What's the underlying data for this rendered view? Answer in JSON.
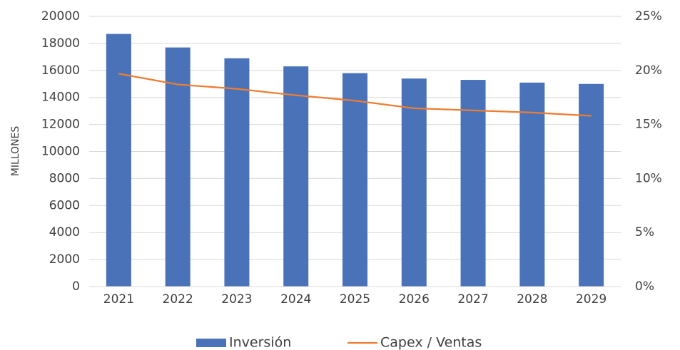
{
  "chart_data": {
    "type": "combo",
    "y_label": "MILLONES",
    "categories": [
      "2021",
      "2022",
      "2023",
      "2024",
      "2025",
      "2026",
      "2027",
      "2028",
      "2029"
    ],
    "series": [
      {
        "name": "Inversión",
        "type": "bar",
        "color": "#4a72b8",
        "axis": "y",
        "values": [
          18700,
          17700,
          16900,
          16300,
          15800,
          15400,
          15300,
          15100,
          15000
        ]
      },
      {
        "name": "Capex / Ventas",
        "type": "line",
        "color": "#ed7d31",
        "axis": "y2",
        "values": [
          19.7,
          18.7,
          18.3,
          17.7,
          17.2,
          16.5,
          16.3,
          16.1,
          15.8
        ]
      }
    ],
    "ylim": [
      0,
      20000
    ],
    "yticks": [
      0,
      2000,
      4000,
      6000,
      8000,
      10000,
      12000,
      14000,
      16000,
      18000,
      20000
    ],
    "y2lim": [
      0,
      25
    ],
    "y2ticks": [
      {
        "value": 0,
        "label": "0%"
      },
      {
        "value": 5,
        "label": "5%"
      },
      {
        "value": 10,
        "label": "10%"
      },
      {
        "value": 15,
        "label": "15%"
      },
      {
        "value": 20,
        "label": "20%"
      },
      {
        "value": 25,
        "label": "25%"
      }
    ],
    "grid": true,
    "legend": "bottom"
  }
}
